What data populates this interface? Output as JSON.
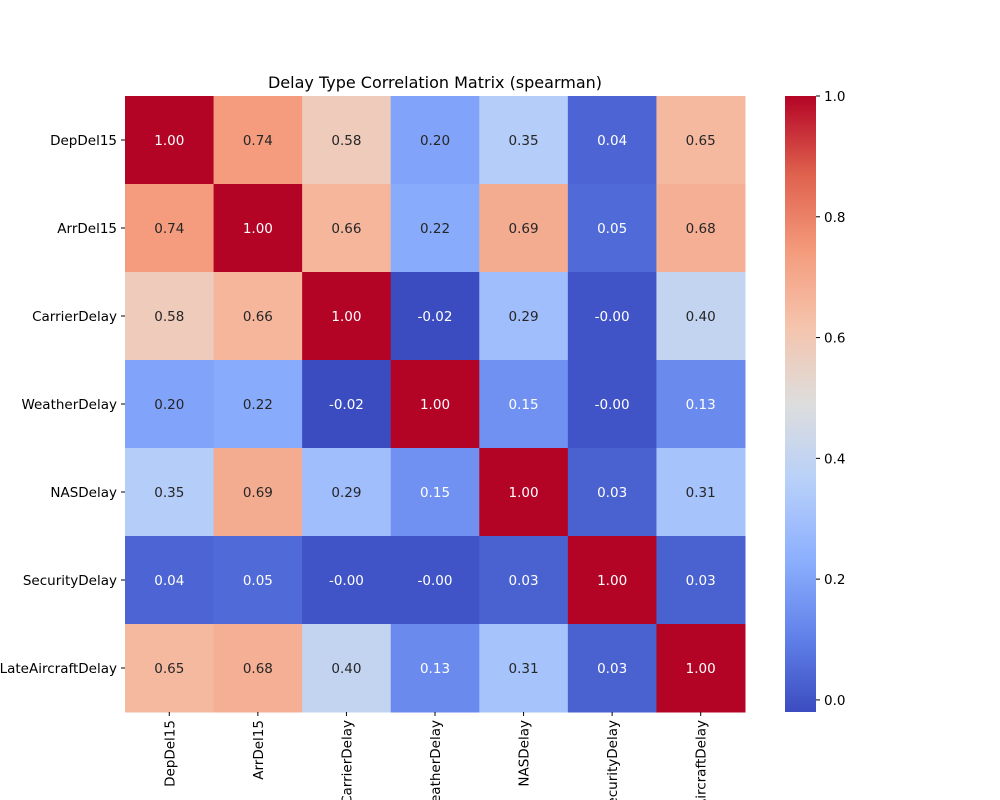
{
  "chart_data": {
    "type": "heatmap",
    "title": "Delay Type Correlation Matrix (spearman)",
    "xlabel": "",
    "ylabel": "",
    "colormap": "coolwarm",
    "value_format": "0.00",
    "row_labels": [
      "DepDel15",
      "ArrDel15",
      "CarrierDelay",
      "WeatherDelay",
      "NASDelay",
      "SecurityDelay",
      "LateAircraftDelay"
    ],
    "col_labels": [
      "DepDel15",
      "ArrDel15",
      "CarrierDelay",
      "WeatherDelay",
      "NASDelay",
      "SecurityDelay",
      "LateAircraftDelay"
    ],
    "values": [
      [
        1.0,
        0.74,
        0.58,
        0.2,
        0.35,
        0.04,
        0.65
      ],
      [
        0.74,
        1.0,
        0.66,
        0.22,
        0.69,
        0.05,
        0.68
      ],
      [
        0.58,
        0.66,
        1.0,
        -0.02,
        0.29,
        -0.0,
        0.4
      ],
      [
        0.2,
        0.22,
        -0.02,
        1.0,
        0.15,
        -0.0,
        0.13
      ],
      [
        0.35,
        0.69,
        0.29,
        0.15,
        1.0,
        0.03,
        0.31
      ],
      [
        0.04,
        0.05,
        -0.0,
        -0.0,
        0.03,
        1.0,
        0.03
      ],
      [
        0.65,
        0.68,
        0.4,
        0.13,
        0.31,
        0.03,
        1.0
      ]
    ],
    "colorbar": {
      "vmin": -0.02,
      "vmax": 1.0,
      "ticks": [
        0.0,
        0.2,
        0.4,
        0.6,
        0.8,
        1.0
      ],
      "tick_labels": [
        "0.0",
        "0.2",
        "0.4",
        "0.6",
        "0.8",
        "1.0"
      ]
    },
    "grid": false,
    "legend": "colorbar-right"
  }
}
